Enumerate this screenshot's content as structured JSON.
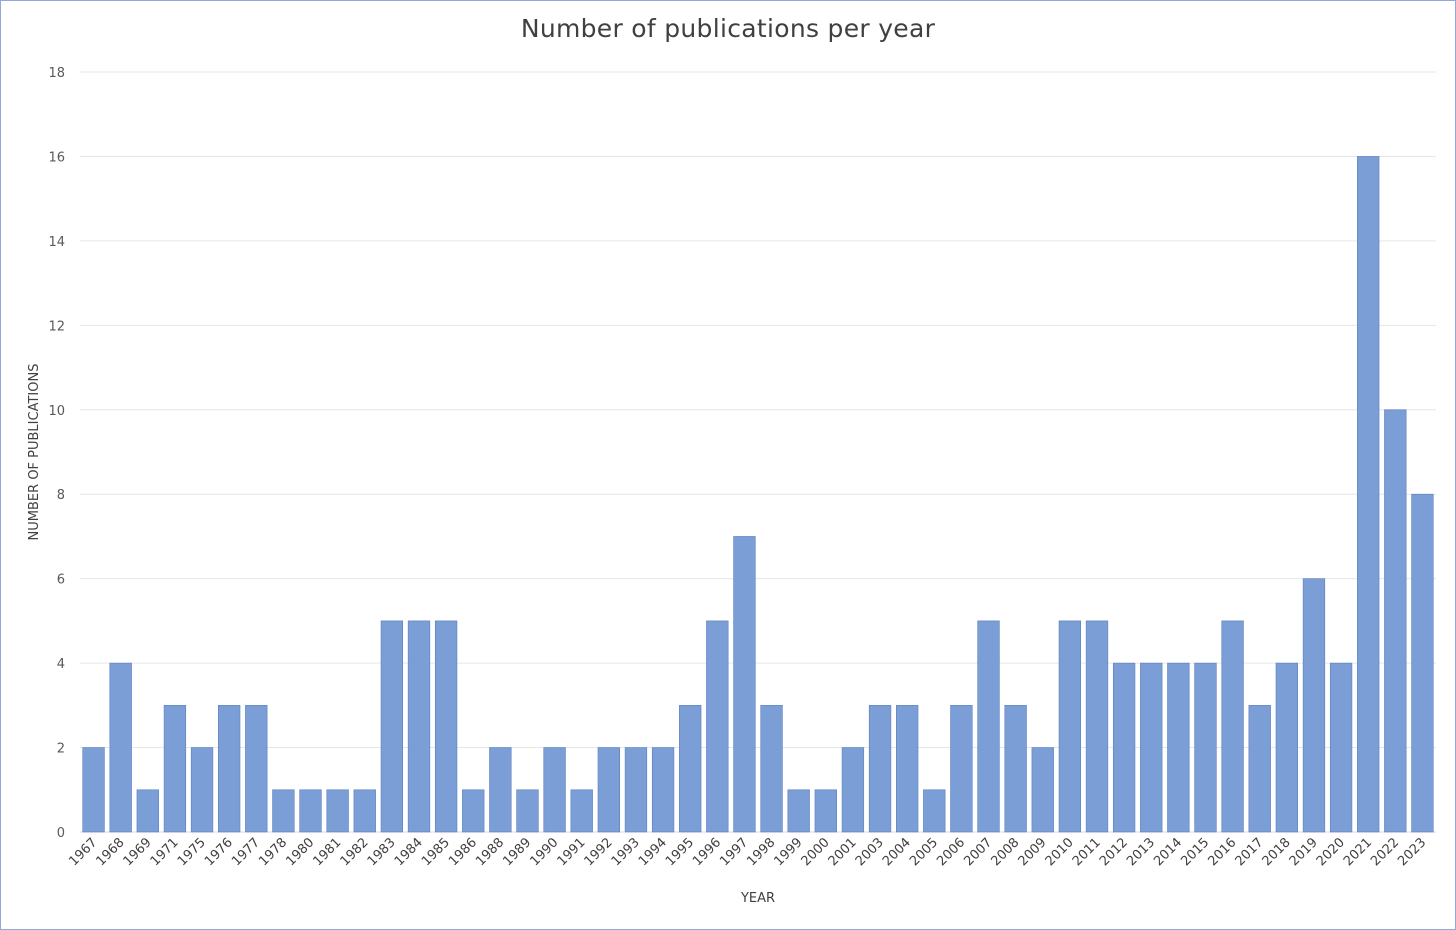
{
  "chart_data": {
    "type": "bar",
    "title": "Number of publications per year",
    "xlabel": "YEAR",
    "ylabel": "NUMBER OF PUBLICATIONS",
    "ylim": [
      0,
      18
    ],
    "yticks": [
      0,
      2,
      4,
      6,
      8,
      10,
      12,
      14,
      16,
      18
    ],
    "grid": true,
    "legend": "none",
    "bar_color": "#7b9ed7",
    "categories": [
      "1967",
      "1968",
      "1969",
      "1971",
      "1975",
      "1976",
      "1977",
      "1978",
      "1980",
      "1981",
      "1982",
      "1983",
      "1984",
      "1985",
      "1986",
      "1988",
      "1989",
      "1990",
      "1991",
      "1992",
      "1993",
      "1994",
      "1995",
      "1996",
      "1997",
      "1998",
      "1999",
      "2000",
      "2001",
      "2003",
      "2004",
      "2005",
      "2006",
      "2007",
      "2008",
      "2009",
      "2010",
      "2011",
      "2012",
      "2013",
      "2014",
      "2015",
      "2016",
      "2017",
      "2018",
      "2019",
      "2020",
      "2021",
      "2022",
      "2023"
    ],
    "values": [
      2,
      4,
      1,
      3,
      2,
      3,
      3,
      1,
      1,
      1,
      1,
      5,
      5,
      5,
      1,
      2,
      1,
      2,
      1,
      2,
      2,
      2,
      3,
      5,
      7,
      3,
      1,
      1,
      2,
      3,
      3,
      1,
      3,
      5,
      3,
      2,
      5,
      5,
      4,
      4,
      4,
      4,
      5,
      3,
      4,
      6,
      4,
      16,
      10,
      8
    ]
  }
}
